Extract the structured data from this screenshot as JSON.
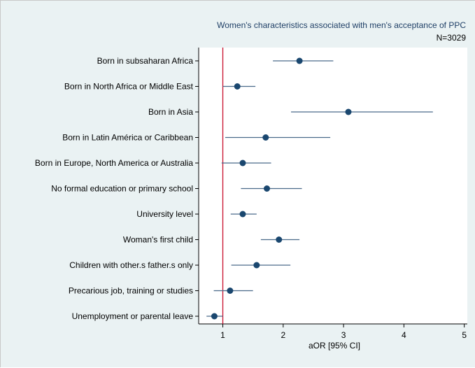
{
  "colors": {
    "background": "#eaf2f3",
    "plot_background": "#ffffff",
    "marker": "#1a476f",
    "ci_line": "#4a6a8a",
    "reference_line": "#c8102e",
    "title": "#1f3f66"
  },
  "chart_data": {
    "type": "scatter",
    "style": "forest-plot",
    "title": "Women's characteristics associated with men's acceptance of PPC",
    "subtitle": "N=3029",
    "xlabel": "aOR [95% CI]",
    "ylabel": "",
    "xlim": [
      0.6,
      5.05
    ],
    "xticks": [
      1,
      2,
      3,
      4,
      5
    ],
    "xtick_labels": [
      "1",
      "2",
      "3",
      "4",
      "5"
    ],
    "reference_x": 1,
    "grid": false,
    "categories": [
      "Born in subsaharan Africa",
      "Born in North Africa or Middle East",
      "Born in Asia",
      "Born in Latin América or Caribbean",
      "Born in Europe, North America or Australia",
      "No formal education or primary school",
      "University level",
      "Woman's first child",
      "Children with other.s father.s only",
      "Precarious job, training or studies",
      "Unemployment or parental leave"
    ],
    "estimates": [
      2.27,
      1.24,
      3.08,
      1.71,
      1.33,
      1.73,
      1.33,
      1.93,
      1.56,
      1.12,
      0.86
    ],
    "ci_low": [
      1.83,
      1.0,
      2.13,
      1.04,
      0.98,
      1.3,
      1.13,
      1.63,
      1.14,
      0.85,
      0.73
    ],
    "ci_high": [
      2.83,
      1.54,
      4.48,
      2.78,
      1.8,
      2.31,
      1.56,
      2.27,
      2.12,
      1.5,
      1.0
    ]
  }
}
